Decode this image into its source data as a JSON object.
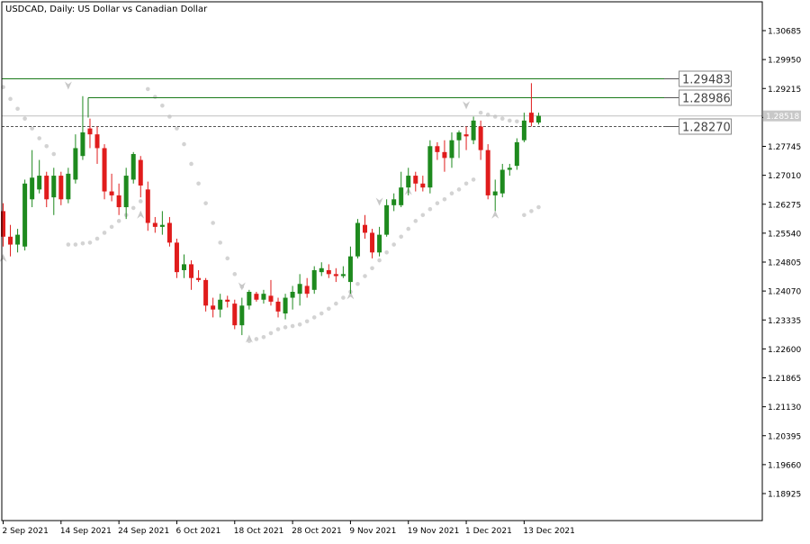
{
  "chart_data": {
    "type": "candlestick",
    "title": "USDCAD, Daily:  US Dollar vs Canadian Dollar",
    "y_ticks": [
      "1.30685",
      "1.29950",
      "1.29215",
      "1.28480",
      "1.27745",
      "1.27010",
      "1.26275",
      "1.25540",
      "1.24805",
      "1.24070",
      "1.23335",
      "1.22600",
      "1.21865",
      "1.21130",
      "1.20395",
      "1.19660",
      "1.18925"
    ],
    "y_tick_values": [
      1.30685,
      1.2995,
      1.29215,
      1.2848,
      1.27745,
      1.2701,
      1.26275,
      1.2554,
      1.24805,
      1.2407,
      1.23335,
      1.226,
      1.21865,
      1.2113,
      1.20395,
      1.1966,
      1.18925
    ],
    "ylim": [
      1.1819,
      1.3113
    ],
    "x_ticks": [
      {
        "label": "2 Sep 2021",
        "index": 0
      },
      {
        "label": "14 Sep 2021",
        "index": 8
      },
      {
        "label": "24 Sep 2021",
        "index": 16
      },
      {
        "label": "6 Oct 2021",
        "index": 24
      },
      {
        "label": "18 Oct 2021",
        "index": 32
      },
      {
        "label": "28 Oct 2021",
        "index": 40
      },
      {
        "label": "9 Nov 2021",
        "index": 48
      },
      {
        "label": "19 Nov 2021",
        "index": 56
      },
      {
        "label": "1 Dec 2021",
        "index": 64
      },
      {
        "label": "13 Dec 2021",
        "index": 72
      }
    ],
    "candles": [
      {
        "o": 1.261,
        "h": 1.263,
        "l": 1.252,
        "c": 1.2545
      },
      {
        "o": 1.2545,
        "h": 1.2575,
        "l": 1.2495,
        "c": 1.2525
      },
      {
        "o": 1.2525,
        "h": 1.2565,
        "l": 1.2505,
        "c": 1.255
      },
      {
        "o": 1.252,
        "h": 1.269,
        "l": 1.251,
        "c": 1.268
      },
      {
        "o": 1.264,
        "h": 1.2765,
        "l": 1.262,
        "c": 1.2695
      },
      {
        "o": 1.2665,
        "h": 1.274,
        "l": 1.2655,
        "c": 1.27
      },
      {
        "o": 1.27,
        "h": 1.271,
        "l": 1.262,
        "c": 1.264
      },
      {
        "o": 1.2645,
        "h": 1.272,
        "l": 1.26,
        "c": 1.27
      },
      {
        "o": 1.27,
        "h": 1.271,
        "l": 1.2625,
        "c": 1.264
      },
      {
        "o": 1.264,
        "h": 1.272,
        "l": 1.263,
        "c": 1.2705
      },
      {
        "o": 1.269,
        "h": 1.2805,
        "l": 1.268,
        "c": 1.277
      },
      {
        "o": 1.275,
        "h": 1.2902,
        "l": 1.274,
        "c": 1.281
      },
      {
        "o": 1.282,
        "h": 1.2845,
        "l": 1.277,
        "c": 1.2805
      },
      {
        "o": 1.2805,
        "h": 1.2825,
        "l": 1.273,
        "c": 1.277
      },
      {
        "o": 1.277,
        "h": 1.278,
        "l": 1.264,
        "c": 1.266
      },
      {
        "o": 1.266,
        "h": 1.2705,
        "l": 1.2635,
        "c": 1.265
      },
      {
        "o": 1.265,
        "h": 1.268,
        "l": 1.26,
        "c": 1.262
      },
      {
        "o": 1.262,
        "h": 1.272,
        "l": 1.259,
        "c": 1.27
      },
      {
        "o": 1.269,
        "h": 1.276,
        "l": 1.268,
        "c": 1.2755
      },
      {
        "o": 1.274,
        "h": 1.275,
        "l": 1.2645,
        "c": 1.2675
      },
      {
        "o": 1.2665,
        "h": 1.2685,
        "l": 1.256,
        "c": 1.258
      },
      {
        "o": 1.258,
        "h": 1.2595,
        "l": 1.2555,
        "c": 1.257
      },
      {
        "o": 1.257,
        "h": 1.261,
        "l": 1.255,
        "c": 1.2575
      },
      {
        "o": 1.258,
        "h": 1.2595,
        "l": 1.252,
        "c": 1.253
      },
      {
        "o": 1.253,
        "h": 1.254,
        "l": 1.244,
        "c": 1.2455
      },
      {
        "o": 1.246,
        "h": 1.25,
        "l": 1.244,
        "c": 1.2475
      },
      {
        "o": 1.2475,
        "h": 1.2485,
        "l": 1.241,
        "c": 1.244
      },
      {
        "o": 1.244,
        "h": 1.246,
        "l": 1.243,
        "c": 1.2435
      },
      {
        "o": 1.2435,
        "h": 1.244,
        "l": 1.2355,
        "c": 1.237
      },
      {
        "o": 1.237,
        "h": 1.239,
        "l": 1.234,
        "c": 1.236
      },
      {
        "o": 1.236,
        "h": 1.24,
        "l": 1.234,
        "c": 1.2385
      },
      {
        "o": 1.2385,
        "h": 1.2395,
        "l": 1.2365,
        "c": 1.238
      },
      {
        "o": 1.2375,
        "h": 1.2385,
        "l": 1.231,
        "c": 1.232
      },
      {
        "o": 1.232,
        "h": 1.239,
        "l": 1.2295,
        "c": 1.237
      },
      {
        "o": 1.237,
        "h": 1.241,
        "l": 1.236,
        "c": 1.2405
      },
      {
        "o": 1.24,
        "h": 1.2405,
        "l": 1.238,
        "c": 1.2385
      },
      {
        "o": 1.2385,
        "h": 1.241,
        "l": 1.2375,
        "c": 1.24
      },
      {
        "o": 1.2395,
        "h": 1.2435,
        "l": 1.237,
        "c": 1.238
      },
      {
        "o": 1.238,
        "h": 1.239,
        "l": 1.234,
        "c": 1.2355
      },
      {
        "o": 1.235,
        "h": 1.24,
        "l": 1.2335,
        "c": 1.239
      },
      {
        "o": 1.239,
        "h": 1.242,
        "l": 1.236,
        "c": 1.2405
      },
      {
        "o": 1.24,
        "h": 1.245,
        "l": 1.237,
        "c": 1.2425
      },
      {
        "o": 1.242,
        "h": 1.244,
        "l": 1.239,
        "c": 1.24
      },
      {
        "o": 1.241,
        "h": 1.247,
        "l": 1.24,
        "c": 1.246
      },
      {
        "o": 1.2455,
        "h": 1.248,
        "l": 1.2445,
        "c": 1.2465
      },
      {
        "o": 1.246,
        "h": 1.2475,
        "l": 1.244,
        "c": 1.245
      },
      {
        "o": 1.245,
        "h": 1.2465,
        "l": 1.243,
        "c": 1.2445
      },
      {
        "o": 1.2445,
        "h": 1.247,
        "l": 1.244,
        "c": 1.245
      },
      {
        "o": 1.243,
        "h": 1.252,
        "l": 1.24,
        "c": 1.2495
      },
      {
        "o": 1.2495,
        "h": 1.259,
        "l": 1.249,
        "c": 1.258
      },
      {
        "o": 1.2575,
        "h": 1.26,
        "l": 1.254,
        "c": 1.2555
      },
      {
        "o": 1.2555,
        "h": 1.2565,
        "l": 1.249,
        "c": 1.2505
      },
      {
        "o": 1.2505,
        "h": 1.257,
        "l": 1.2495,
        "c": 1.255
      },
      {
        "o": 1.255,
        "h": 1.264,
        "l": 1.2545,
        "c": 1.2625
      },
      {
        "o": 1.2625,
        "h": 1.2655,
        "l": 1.261,
        "c": 1.264
      },
      {
        "o": 1.2625,
        "h": 1.271,
        "l": 1.262,
        "c": 1.267
      },
      {
        "o": 1.267,
        "h": 1.272,
        "l": 1.265,
        "c": 1.27
      },
      {
        "o": 1.27,
        "h": 1.271,
        "l": 1.266,
        "c": 1.268
      },
      {
        "o": 1.268,
        "h": 1.27,
        "l": 1.266,
        "c": 1.267
      },
      {
        "o": 1.267,
        "h": 1.279,
        "l": 1.2655,
        "c": 1.2775
      },
      {
        "o": 1.2775,
        "h": 1.2785,
        "l": 1.274,
        "c": 1.276
      },
      {
        "o": 1.276,
        "h": 1.279,
        "l": 1.271,
        "c": 1.2745
      },
      {
        "o": 1.2745,
        "h": 1.281,
        "l": 1.272,
        "c": 1.279
      },
      {
        "o": 1.279,
        "h": 1.2815,
        "l": 1.2745,
        "c": 1.281
      },
      {
        "o": 1.2805,
        "h": 1.2825,
        "l": 1.2765,
        "c": 1.28
      },
      {
        "o": 1.279,
        "h": 1.285,
        "l": 1.278,
        "c": 1.284
      },
      {
        "o": 1.2825,
        "h": 1.284,
        "l": 1.274,
        "c": 1.2765
      },
      {
        "o": 1.2765,
        "h": 1.278,
        "l": 1.264,
        "c": 1.265
      },
      {
        "o": 1.265,
        "h": 1.269,
        "l": 1.261,
        "c": 1.266
      },
      {
        "o": 1.2655,
        "h": 1.273,
        "l": 1.2645,
        "c": 1.2715
      },
      {
        "o": 1.2715,
        "h": 1.273,
        "l": 1.27,
        "c": 1.272
      },
      {
        "o": 1.2725,
        "h": 1.2795,
        "l": 1.2715,
        "c": 1.2785
      },
      {
        "o": 1.279,
        "h": 1.286,
        "l": 1.2785,
        "c": 1.284
      },
      {
        "o": 1.286,
        "h": 1.2935,
        "l": 1.2825,
        "c": 1.2835
      },
      {
        "o": 1.2835,
        "h": 1.286,
        "l": 1.283,
        "c": 1.2852
      }
    ],
    "psar": [
      {
        "i": 0,
        "v": 1.2925
      },
      {
        "i": 1,
        "v": 1.2895
      },
      {
        "i": 2,
        "v": 1.287
      },
      {
        "i": 3,
        "v": 1.2845
      },
      {
        "i": 4,
        "v": 1.282
      },
      {
        "i": 5,
        "v": 1.2795
      },
      {
        "i": 6,
        "v": 1.2775
      },
      {
        "i": 7,
        "v": 1.2755
      },
      {
        "i": 9,
        "v": 1.2525
      },
      {
        "i": 10,
        "v": 1.2525
      },
      {
        "i": 11,
        "v": 1.2528
      },
      {
        "i": 12,
        "v": 1.253
      },
      {
        "i": 13,
        "v": 1.254
      },
      {
        "i": 14,
        "v": 1.2555
      },
      {
        "i": 15,
        "v": 1.257
      },
      {
        "i": 16,
        "v": 1.2585
      },
      {
        "i": 17,
        "v": 1.26
      },
      {
        "i": 18,
        "v": 1.2618
      },
      {
        "i": 19,
        "v": 1.2635
      },
      {
        "i": 20,
        "v": 1.292
      },
      {
        "i": 21,
        "v": 1.29
      },
      {
        "i": 22,
        "v": 1.2878
      },
      {
        "i": 23,
        "v": 1.285
      },
      {
        "i": 24,
        "v": 1.282
      },
      {
        "i": 25,
        "v": 1.278
      },
      {
        "i": 26,
        "v": 1.273
      },
      {
        "i": 27,
        "v": 1.268
      },
      {
        "i": 28,
        "v": 1.263
      },
      {
        "i": 29,
        "v": 1.258
      },
      {
        "i": 30,
        "v": 1.253
      },
      {
        "i": 31,
        "v": 1.249
      },
      {
        "i": 32,
        "v": 1.245
      },
      {
        "i": 33,
        "v": 1.2418
      },
      {
        "i": 34,
        "v": 1.228
      },
      {
        "i": 35,
        "v": 1.2285
      },
      {
        "i": 36,
        "v": 1.229
      },
      {
        "i": 37,
        "v": 1.23
      },
      {
        "i": 38,
        "v": 1.231
      },
      {
        "i": 39,
        "v": 1.2315
      },
      {
        "i": 40,
        "v": 1.2318
      },
      {
        "i": 41,
        "v": 1.2322
      },
      {
        "i": 42,
        "v": 1.233
      },
      {
        "i": 43,
        "v": 1.234
      },
      {
        "i": 44,
        "v": 1.235
      },
      {
        "i": 45,
        "v": 1.2362
      },
      {
        "i": 46,
        "v": 1.2375
      },
      {
        "i": 47,
        "v": 1.239
      },
      {
        "i": 48,
        "v": 1.2405
      },
      {
        "i": 49,
        "v": 1.2425
      },
      {
        "i": 50,
        "v": 1.2445
      },
      {
        "i": 51,
        "v": 1.2465
      },
      {
        "i": 52,
        "v": 1.2485
      },
      {
        "i": 53,
        "v": 1.2505
      },
      {
        "i": 54,
        "v": 1.2525
      },
      {
        "i": 55,
        "v": 1.2545
      },
      {
        "i": 56,
        "v": 1.2565
      },
      {
        "i": 57,
        "v": 1.2585
      },
      {
        "i": 58,
        "v": 1.26
      },
      {
        "i": 59,
        "v": 1.2615
      },
      {
        "i": 60,
        "v": 1.263
      },
      {
        "i": 61,
        "v": 1.264
      },
      {
        "i": 62,
        "v": 1.2655
      },
      {
        "i": 63,
        "v": 1.2665
      },
      {
        "i": 64,
        "v": 1.268
      },
      {
        "i": 65,
        "v": 1.269
      },
      {
        "i": 66,
        "v": 1.286
      },
      {
        "i": 67,
        "v": 1.2855
      },
      {
        "i": 68,
        "v": 1.285
      },
      {
        "i": 69,
        "v": 1.2845
      },
      {
        "i": 70,
        "v": 1.284
      },
      {
        "i": 71,
        "v": 1.2838
      },
      {
        "i": 72,
        "v": 1.26
      },
      {
        "i": 73,
        "v": 1.261
      },
      {
        "i": 74,
        "v": 1.262
      }
    ],
    "psar_reversals": [
      {
        "i": 0,
        "v": 1.249,
        "dir": "up"
      },
      {
        "i": 9,
        "v": 1.293,
        "dir": "down"
      },
      {
        "i": 19,
        "v": 1.26,
        "dir": "up"
      },
      {
        "i": 33,
        "v": 1.242,
        "dir": "down"
      },
      {
        "i": 34,
        "v": 1.2285,
        "dir": "up"
      },
      {
        "i": 48,
        "v": 1.2395,
        "dir": "up"
      },
      {
        "i": 52,
        "v": 1.2635,
        "dir": "down"
      },
      {
        "i": 56,
        "v": 1.266,
        "dir": "up"
      },
      {
        "i": 64,
        "v": 1.288,
        "dir": "down"
      },
      {
        "i": 68,
        "v": 1.26,
        "dir": "up"
      }
    ],
    "levels": [
      {
        "value": 1.29483,
        "label": "1.29483",
        "start_index": -1,
        "style": "solid"
      },
      {
        "value": 1.28986,
        "label": "1.28986",
        "start_index": 12,
        "style": "solid"
      },
      {
        "value": 1.2827,
        "label": "1.28270",
        "start_index": -1,
        "style": "dashed"
      }
    ],
    "current_price": {
      "value": 1.28518,
      "label": "1.28518"
    },
    "colors": {
      "bull": "#1e8a1e",
      "bear": "#e01c1c",
      "psar": "#d3d3d3",
      "level": "#1a7a1a",
      "grid_axis": "#000000",
      "price_line": "#c0c0c0",
      "price_tag": "#c8c8c8"
    }
  }
}
